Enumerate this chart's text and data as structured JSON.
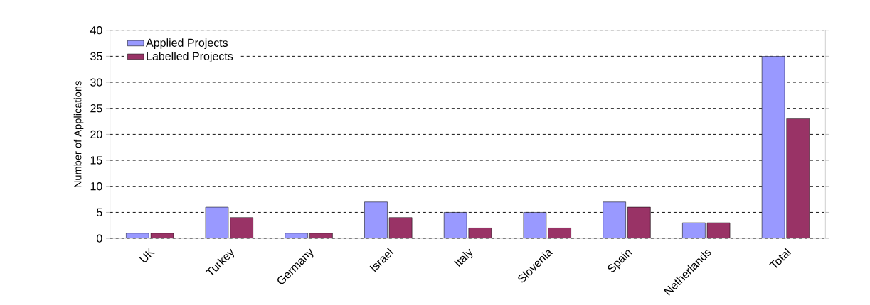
{
  "chart_data": {
    "type": "bar",
    "ylabel": "Number of Applications",
    "categories": [
      "UK",
      "Turkey",
      "Germany",
      "Israel",
      "Italy",
      "Slovenia",
      "Spain",
      "Netherlands",
      "Total"
    ],
    "series": [
      {
        "name": "Applied Projects",
        "color": "#9999ff",
        "values": [
          1,
          6,
          1,
          7,
          5,
          5,
          7,
          3,
          35
        ]
      },
      {
        "name": "Labelled Projects",
        "color": "#993366",
        "values": [
          1,
          4,
          1,
          4,
          2,
          2,
          6,
          3,
          23
        ]
      }
    ],
    "ylim": [
      0,
      40
    ],
    "yticks": [
      0,
      5,
      10,
      15,
      20,
      25,
      30,
      35,
      40
    ],
    "grid": "y",
    "legend": "top left"
  }
}
